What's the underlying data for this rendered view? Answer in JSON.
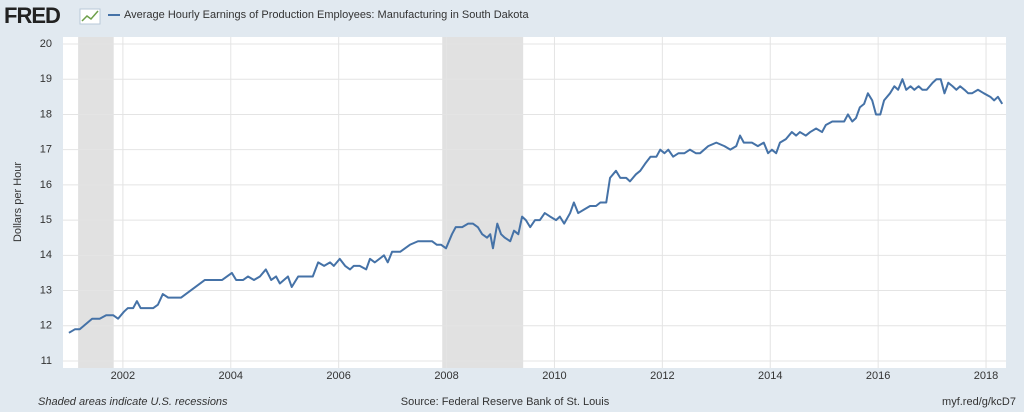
{
  "chart_data": {
    "type": "line",
    "logo": "FRED",
    "y_label": "Dollars per Hour",
    "note": "Shaded areas indicate U.S. recessions",
    "source": "Source: Federal Reserve Bank of St. Louis",
    "link": "myf.red/g/kcD7",
    "xlim": [
      2000.89,
      2018.37
    ],
    "xticks": [
      2002,
      2004,
      2006,
      2008,
      2010,
      2012,
      2014,
      2016,
      2018
    ],
    "ylim": [
      11,
      20
    ],
    "yticks": [
      11,
      12,
      13,
      14,
      15,
      16,
      17,
      18,
      19,
      20
    ],
    "grid": true,
    "recessions": [
      [
        2001.17,
        2001.83
      ],
      [
        2007.92,
        2009.42
      ]
    ],
    "recession_color": "#e1e1e1",
    "x": [
      2001.0,
      2001.11,
      2001.2,
      2001.43,
      2001.57,
      2001.69,
      2001.82,
      2001.91,
      2002.02,
      2002.09,
      2002.19,
      2002.26,
      2002.33,
      2002.56,
      2002.65,
      2002.74,
      2002.84,
      2003.08,
      2003.52,
      2003.84,
      2004.02,
      2004.1,
      2004.23,
      2004.32,
      2004.43,
      2004.54,
      2004.65,
      2004.75,
      2004.84,
      2004.91,
      2005.06,
      2005.13,
      2005.25,
      2005.52,
      2005.62,
      2005.73,
      2005.84,
      2005.91,
      2006.02,
      2006.12,
      2006.21,
      2006.28,
      2006.39,
      2006.51,
      2006.58,
      2006.67,
      2006.84,
      2006.91,
      2006.99,
      2007.14,
      2007.32,
      2007.47,
      2007.73,
      2007.82,
      2007.9,
      2007.99,
      2008.1,
      2008.17,
      2008.29,
      2008.4,
      2008.49,
      2008.58,
      2008.66,
      2008.75,
      2008.81,
      2008.86,
      2008.94,
      2009.01,
      2009.08,
      2009.18,
      2009.25,
      2009.33,
      2009.4,
      2009.47,
      2009.55,
      2009.64,
      2009.73,
      2009.82,
      2009.92,
      2010.03,
      2010.1,
      2010.18,
      2010.29,
      2010.36,
      2010.44,
      2010.55,
      2010.66,
      2010.77,
      2010.85,
      2010.96,
      2011.03,
      2011.14,
      2011.22,
      2011.33,
      2011.4,
      2011.51,
      2011.59,
      2011.68,
      2011.78,
      2011.89,
      2011.96,
      2012.04,
      2012.11,
      2012.2,
      2012.3,
      2012.41,
      2012.51,
      2012.62,
      2012.7,
      2012.85,
      2013.0,
      2013.15,
      2013.26,
      2013.37,
      2013.44,
      2013.51,
      2013.66,
      2013.77,
      2013.88,
      2013.96,
      2014.03,
      2014.11,
      2014.18,
      2014.29,
      2014.4,
      2014.48,
      2014.55,
      2014.66,
      2014.74,
      2014.85,
      2014.96,
      2015.03,
      2015.15,
      2015.26,
      2015.37,
      2015.44,
      2015.52,
      2015.59,
      2015.66,
      2015.74,
      2015.81,
      2015.89,
      2015.96,
      2016.04,
      2016.11,
      2016.22,
      2016.3,
      2016.37,
      2016.45,
      2016.52,
      2016.6,
      2016.67,
      2016.75,
      2016.82,
      2016.9,
      2017.01,
      2017.08,
      2017.16,
      2017.23,
      2017.3,
      2017.38,
      2017.45,
      2017.52,
      2017.6,
      2017.67,
      2017.74,
      2017.85,
      2017.96,
      2018.08,
      2018.15,
      2018.22,
      2018.3
    ],
    "series": [
      {
        "name": "Average Hourly Earnings of Production Employees: Manufacturing in South Dakota",
        "color": "#4572a7",
        "values": [
          11.8,
          11.9,
          11.9,
          12.2,
          12.2,
          12.3,
          12.3,
          12.2,
          12.4,
          12.5,
          12.5,
          12.7,
          12.5,
          12.5,
          12.6,
          12.9,
          12.8,
          12.8,
          13.3,
          13.3,
          13.5,
          13.3,
          13.3,
          13.4,
          13.3,
          13.4,
          13.6,
          13.3,
          13.4,
          13.2,
          13.4,
          13.1,
          13.4,
          13.4,
          13.8,
          13.7,
          13.8,
          13.7,
          13.9,
          13.7,
          13.6,
          13.7,
          13.7,
          13.6,
          13.9,
          13.8,
          14.0,
          13.8,
          14.1,
          14.1,
          14.3,
          14.4,
          14.4,
          14.3,
          14.3,
          14.2,
          14.6,
          14.8,
          14.8,
          14.9,
          14.9,
          14.8,
          14.6,
          14.5,
          14.6,
          14.2,
          14.9,
          14.6,
          14.5,
          14.4,
          14.7,
          14.6,
          15.1,
          15.0,
          14.8,
          15.0,
          15.0,
          15.2,
          15.1,
          15.0,
          15.1,
          14.9,
          15.2,
          15.5,
          15.2,
          15.3,
          15.4,
          15.4,
          15.5,
          15.5,
          16.2,
          16.4,
          16.2,
          16.2,
          16.1,
          16.3,
          16.4,
          16.6,
          16.8,
          16.8,
          17.0,
          16.9,
          17.0,
          16.8,
          16.9,
          16.9,
          17.0,
          16.9,
          16.9,
          17.1,
          17.2,
          17.1,
          17.0,
          17.1,
          17.4,
          17.2,
          17.2,
          17.1,
          17.2,
          16.9,
          17.0,
          16.9,
          17.2,
          17.3,
          17.5,
          17.4,
          17.5,
          17.4,
          17.5,
          17.6,
          17.5,
          17.7,
          17.8,
          17.8,
          17.8,
          18.0,
          17.8,
          17.9,
          18.2,
          18.3,
          18.6,
          18.4,
          18.0,
          18.0,
          18.4,
          18.6,
          18.8,
          18.7,
          19.0,
          18.7,
          18.8,
          18.7,
          18.8,
          18.7,
          18.7,
          18.9,
          19.0,
          19.0,
          18.6,
          18.9,
          18.8,
          18.7,
          18.8,
          18.7,
          18.6,
          18.6,
          18.7,
          18.6,
          18.5,
          18.4,
          18.5,
          18.3
        ]
      }
    ]
  }
}
